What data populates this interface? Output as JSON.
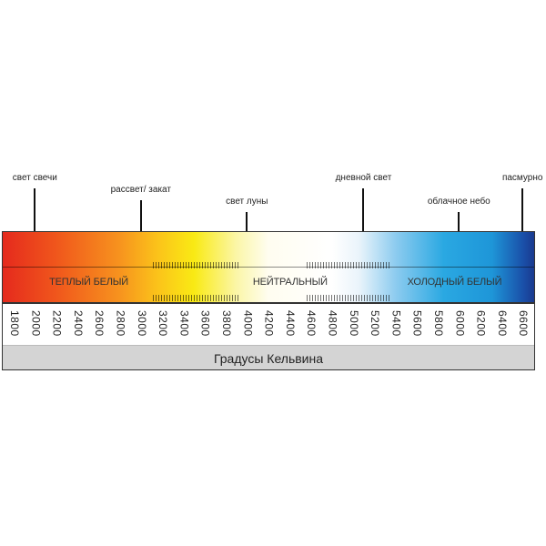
{
  "markers": [
    {
      "label": "свет свечи",
      "kelvin": 2000
    },
    {
      "label": "рассвет/ закат",
      "kelvin": 3000
    },
    {
      "label": "свет луны",
      "kelvin": 4000
    },
    {
      "label": "дневной свет",
      "kelvin": 5100
    },
    {
      "label": "облачное небо",
      "kelvin": 6000
    },
    {
      "label": "пасмурно",
      "kelvin": 6600
    }
  ],
  "zones": [
    {
      "label": "ТЕПЛЫЙ БЕЛЫЙ",
      "kelvin": 2500
    },
    {
      "label": "НЕЙТРАЛЬНЫЙ",
      "kelvin": 4400
    },
    {
      "label": "ХОЛОДНЫЙ БЕЛЫЙ",
      "kelvin": 5950
    }
  ],
  "scale": [
    "1800",
    "2000",
    "2200",
    "2400",
    "2600",
    "2800",
    "3000",
    "3200",
    "3400",
    "3600",
    "3800",
    "4000",
    "4200",
    "4400",
    "4600",
    "4800",
    "5000",
    "5200",
    "5400",
    "5600",
    "5800",
    "6000",
    "6200",
    "6400",
    "6600"
  ],
  "footer": "Градусы Кельвина",
  "colors": {
    "warm": "#e52a1d",
    "yellow": "#f9ea14",
    "neutral": "#ffffff",
    "cool": "#2aa8e2",
    "deep_blue": "#1a3a8f"
  }
}
